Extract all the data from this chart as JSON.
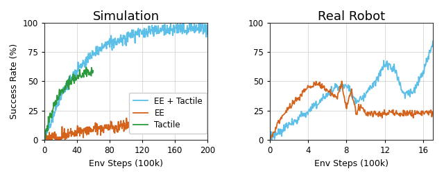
{
  "title_sim": "Simulation",
  "title_real": "Real Robot",
  "ylabel": "Success Rate (%)",
  "xlabel": "Env Steps (100k)",
  "colors": {
    "ee_tactile": "#5bbfe8",
    "ee": "#d4621a",
    "tactile": "#2a9a3c"
  },
  "legend_labels": [
    "EE + Tactile",
    "EE",
    "Tactile"
  ],
  "sim_xlim": [
    0,
    200
  ],
  "sim_ylim": [
    0,
    100
  ],
  "sim_xticks": [
    0,
    40,
    80,
    120,
    160,
    200
  ],
  "sim_yticks": [
    0,
    25,
    50,
    75,
    100
  ],
  "real_xlim": [
    0,
    17
  ],
  "real_ylim": [
    0,
    100
  ],
  "real_xticks": [
    0,
    4,
    8,
    12,
    16
  ],
  "real_yticks": [
    0,
    25,
    50,
    75,
    100
  ],
  "background_color": "#ffffff",
  "grid_color": "#cccccc",
  "title_fontsize": 13,
  "label_fontsize": 9,
  "tick_fontsize": 8.5,
  "legend_fontsize": 8.5,
  "linewidth": 1.3
}
